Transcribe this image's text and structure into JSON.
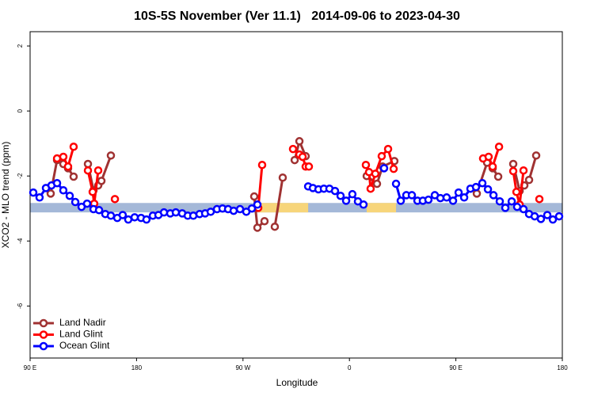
{
  "chart_data": {
    "type": "line",
    "title": "10S-5S November (Ver 11.1)   2014-09-06 to 2023-04-30",
    "x_label": "Longitude",
    "y_label": "XCO2 - MLO trend (ppm)",
    "xlim": [
      90,
      540
    ],
    "xticks": [
      {
        "value": 90,
        "label": "90 E"
      },
      {
        "value": 180,
        "label": "180"
      },
      {
        "value": 270,
        "label": "90 W"
      },
      {
        "value": 360,
        "label": "0"
      },
      {
        "value": 450,
        "label": "90 E"
      },
      {
        "value": 540,
        "label": "180"
      }
    ],
    "ylim": [
      -7.6,
      2.44
    ],
    "yticks": [
      2,
      0,
      -2,
      -4,
      -6
    ],
    "legend": "bottom-left",
    "bands": [
      {
        "xlim": [
          90,
          540
        ],
        "ylim": [
          -3.12,
          -2.83
        ],
        "color": "#a4b8d8"
      },
      {
        "xlim": [
          282.2,
          325.1
        ],
        "ylim": [
          -3.12,
          -2.83
        ],
        "color": "#f7d57a"
      },
      {
        "xlim": [
          374.6,
          399.4
        ],
        "ylim": [
          -3.12,
          -2.83
        ],
        "color": "#f7d57a"
      }
    ],
    "series": [
      {
        "name": "Land Nadir",
        "color": "#a03232",
        "x": [
          107.4,
          112.8,
          118.1,
          122.1,
          126.8,
          null,
          138.9,
          143.6,
          147.6,
          150.3,
          158.3,
          null,
          279.5,
          282.2,
          288.2,
          null,
          296.9,
          303.6,
          null,
          313.7,
          317.7,
          323.0,
          null,
          374.6,
          383.3,
          388.0,
          398.0,
          null,
          467.7,
          476.4,
          481.1,
          485.8,
          null,
          498.5,
          503.9,
          507.9,
          511.9,
          517.9
        ],
        "values": [
          -2.54,
          -1.51,
          -1.63,
          -1.76,
          -2.02,
          null,
          -1.63,
          -2.44,
          -2.29,
          -2.15,
          -1.37,
          null,
          -2.63,
          -3.59,
          -3.39,
          null,
          -3.56,
          -2.05,
          null,
          -1.51,
          -0.93,
          -1.39,
          null,
          -2.0,
          -2.24,
          -1.71,
          -1.54,
          null,
          -2.54,
          -1.59,
          -1.76,
          -2.02,
          null,
          -1.63,
          -2.46,
          -2.29,
          -2.12,
          -1.37
        ]
      },
      {
        "name": "Land Glint",
        "color": "#ff0000",
        "x": [
          112.8,
          118.1,
          122.1,
          126.8,
          null,
          138.9,
          142.9,
          144.2,
          147.6,
          null,
          161.7,
          null,
          282.9,
          286.2,
          null,
          312.3,
          317.7,
          320.4,
          323.0,
          325.7,
          null,
          373.9,
          376.6,
          377.9,
          381.9,
          387.3,
          392.7,
          397.4,
          null,
          473.0,
          477.7,
          481.1,
          486.5,
          null,
          498.5,
          501.2,
          503.9,
          507.2,
          null,
          520.6
        ],
        "values": [
          -1.46,
          -1.41,
          -1.71,
          -1.1,
          null,
          -1.83,
          -2.49,
          -2.85,
          -1.83,
          null,
          -2.71,
          null,
          -2.98,
          -1.66,
          null,
          -1.17,
          -1.34,
          -1.41,
          -1.71,
          -1.71,
          null,
          -1.66,
          -1.88,
          -2.39,
          -1.93,
          -1.39,
          -1.17,
          -1.78,
          null,
          -1.46,
          -1.41,
          -1.71,
          -1.1,
          null,
          -1.85,
          -2.49,
          -2.88,
          -1.83,
          null,
          -2.71
        ]
      },
      {
        "name": "Ocean Glint",
        "color": "#0000ff",
        "x": [
          92.7,
          98.0,
          103.4,
          108.1,
          112.8,
          118.1,
          123.5,
          128.2,
          133.5,
          138.2,
          143.6,
          148.3,
          153.6,
          158.3,
          163.7,
          168.3,
          173.0,
          178.4,
          183.8,
          188.4,
          193.8,
          198.5,
          203.2,
          208.5,
          213.2,
          218.6,
          223.3,
          228.0,
          233.3,
          238.0,
          242.7,
          248.0,
          252.7,
          257.4,
          262.1,
          267.5,
          272.8,
          277.5,
          282.2,
          null,
          325.1,
          329.1,
          333.8,
          338.4,
          343.1,
          347.8,
          352.5,
          357.2,
          362.5,
          367.2,
          371.9,
          null,
          389.3,
          null,
          399.4,
          403.4,
          408.1,
          412.8,
          417.5,
          422.1,
          426.8,
          432.2,
          436.9,
          442.2,
          447.6,
          452.3,
          457.0,
          462.3,
          467.0,
          472.4,
          477.1,
          481.8,
          487.1,
          491.8,
          497.2,
          501.8,
          507.2,
          511.9,
          516.6,
          521.9,
          527.3,
          532.0,
          537.3
        ],
        "values": [
          -2.51,
          -2.66,
          -2.37,
          -2.29,
          -2.22,
          -2.44,
          -2.61,
          -2.8,
          -2.95,
          -2.85,
          -3.02,
          -3.05,
          -3.17,
          -3.22,
          -3.29,
          -3.2,
          -3.34,
          -3.27,
          -3.29,
          -3.34,
          -3.22,
          -3.2,
          -3.12,
          -3.15,
          -3.12,
          -3.15,
          -3.22,
          -3.22,
          -3.17,
          -3.15,
          -3.1,
          -3.02,
          -3.0,
          -3.02,
          -3.07,
          -3.02,
          -3.1,
          -3.0,
          -2.88,
          null,
          -2.32,
          -2.37,
          -2.41,
          -2.39,
          -2.39,
          -2.46,
          -2.61,
          -2.76,
          -2.56,
          -2.78,
          -2.88,
          null,
          -1.76,
          null,
          -2.24,
          -2.76,
          -2.59,
          -2.59,
          -2.76,
          -2.76,
          -2.73,
          -2.59,
          -2.68,
          -2.66,
          -2.76,
          -2.51,
          -2.66,
          -2.39,
          -2.34,
          -2.22,
          -2.41,
          -2.59,
          -2.78,
          -2.98,
          -2.78,
          -2.95,
          -3.02,
          -3.17,
          -3.24,
          -3.32,
          -3.2,
          -3.34,
          -3.24
        ]
      }
    ]
  }
}
